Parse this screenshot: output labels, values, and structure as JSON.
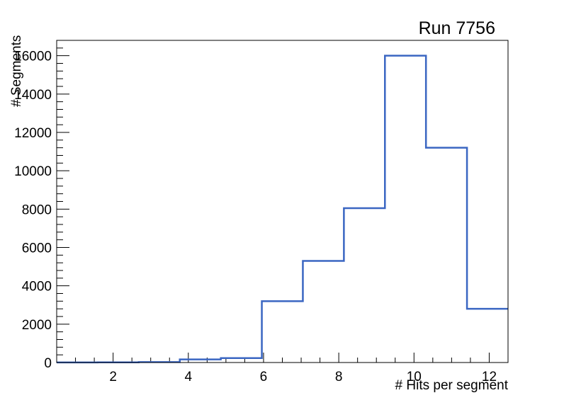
{
  "chart_data": {
    "type": "histogram-step",
    "title": "Run 7756",
    "xlabel": "# Hits per segment",
    "ylabel": "# Segments",
    "bin_start": 0.5,
    "bin_end": 12.5,
    "n_bins": 11,
    "values": [
      5,
      10,
      25,
      160,
      230,
      3200,
      5300,
      8050,
      16000,
      11200,
      2800
    ],
    "xlim": [
      0.5,
      12.5
    ],
    "ylim": [
      0,
      16800
    ],
    "x_major_ticks": [
      2,
      4,
      6,
      8,
      10,
      12
    ],
    "x_minor_step": 0.5,
    "y_major_ticks": [
      0,
      2000,
      4000,
      6000,
      8000,
      10000,
      12000,
      14000,
      16000
    ],
    "y_minor_step": 400,
    "grid": false,
    "legend": null,
    "line_color": "#3a66c2",
    "axis_color": "#000000",
    "background_color": "#ffffff"
  }
}
